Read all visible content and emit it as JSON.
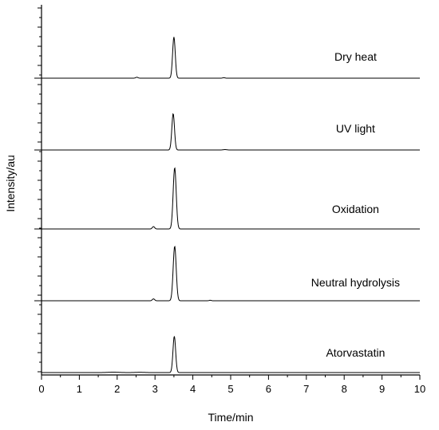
{
  "chart_data": {
    "type": "line",
    "title": "",
    "xlabel": "Time/min",
    "ylabel": "Intensity/au",
    "xlim": [
      0,
      10
    ],
    "x_ticks": [
      "0",
      "1",
      "2",
      "3",
      "4",
      "5",
      "6",
      "7",
      "8",
      "9",
      "10"
    ],
    "y_tick_labels": "none",
    "grid": false,
    "legend": "none",
    "series": [
      {
        "name": "Dry heat",
        "label_at_x": 8.3,
        "peaks": [
          {
            "x": 3.5,
            "height": 0.86,
            "width": 0.035
          },
          {
            "x": 2.52,
            "height": 0.02,
            "width": 0.03
          },
          {
            "x": 4.82,
            "height": 0.01,
            "width": 0.03
          }
        ]
      },
      {
        "name": "UV light",
        "label_at_x": 8.3,
        "peaks": [
          {
            "x": 3.48,
            "height": 0.76,
            "width": 0.035
          },
          {
            "x": 4.85,
            "height": 0.008,
            "width": 0.05
          }
        ]
      },
      {
        "name": "Oxidation",
        "label_at_x": 8.3,
        "peaks": [
          {
            "x": 3.52,
            "height": 1.28,
            "width": 0.04
          },
          {
            "x": 2.96,
            "height": 0.05,
            "width": 0.03
          }
        ]
      },
      {
        "name": "Neutral hydrolysis",
        "label_at_x": 8.3,
        "peaks": [
          {
            "x": 3.52,
            "height": 1.14,
            "width": 0.04
          },
          {
            "x": 2.96,
            "height": 0.04,
            "width": 0.03
          },
          {
            "x": 4.46,
            "height": 0.01,
            "width": 0.03
          }
        ]
      },
      {
        "name": "Atorvastatin",
        "label_at_x": 8.3,
        "peaks": [
          {
            "x": 3.51,
            "height": 0.76,
            "width": 0.035
          },
          {
            "x": 1.9,
            "height": 0.008,
            "width": 0.15
          },
          {
            "x": 2.6,
            "height": 0.006,
            "width": 0.12
          }
        ]
      }
    ]
  }
}
